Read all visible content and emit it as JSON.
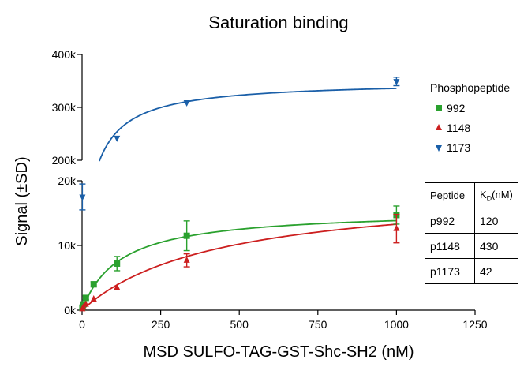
{
  "chart_data": {
    "type": "scatter",
    "title": "Saturation binding",
    "xlabel": "MSD SULFO-TAG-GST-Shc-SH2 (nM)",
    "ylabel": "Signal (±SD)",
    "xlim": [
      0,
      1250
    ],
    "x_ticks": [
      "0",
      "250",
      "500",
      "750",
      "1000",
      "1250"
    ],
    "upper_panel": {
      "ylim": [
        200000,
        400000
      ],
      "y_ticks": [
        "200k",
        "300k",
        "400k"
      ]
    },
    "lower_panel": {
      "ylim": [
        0,
        20000
      ],
      "y_ticks": [
        "0k",
        "10k",
        "20k"
      ]
    },
    "legend_title": "Phosphopeptide",
    "legend_position": "right",
    "series": [
      {
        "name": "992",
        "color": "#2aa12e",
        "marker": "square",
        "x": [
          1,
          4,
          12,
          37,
          111,
          333,
          1000
        ],
        "y": [
          400,
          900,
          1900,
          4000,
          7200,
          11500,
          14700
        ],
        "sd": [
          0,
          0,
          300,
          400,
          1100,
          2300,
          1400
        ],
        "fit_bmax": 15500,
        "fit_kd": 120
      },
      {
        "name": "1148",
        "color": "#cc1f1f",
        "marker": "triangle-up",
        "x": [
          1,
          4,
          12,
          37,
          111,
          333,
          1000
        ],
        "y": [
          200,
          450,
          900,
          1700,
          3500,
          7700,
          12600
        ],
        "sd": [
          0,
          0,
          0,
          0,
          0,
          1000,
          2200
        ],
        "fit_bmax": 19000,
        "fit_kd": 430
      },
      {
        "name": "1173",
        "color": "#1a5fa8",
        "marker": "triangle-down",
        "x": [
          1,
          111,
          333,
          1000
        ],
        "y": [
          17500,
          242000,
          309000,
          349000
        ],
        "sd": [
          2000,
          0,
          0,
          8000
        ],
        "fit_bmax": 350000,
        "fit_kd": 42
      }
    ],
    "table": {
      "headers": [
        "Peptide",
        "K",
        "D",
        "(nM)"
      ],
      "rows": [
        [
          "p992",
          "120"
        ],
        [
          "p1148",
          "430"
        ],
        [
          "p1173",
          "42"
        ]
      ]
    }
  }
}
